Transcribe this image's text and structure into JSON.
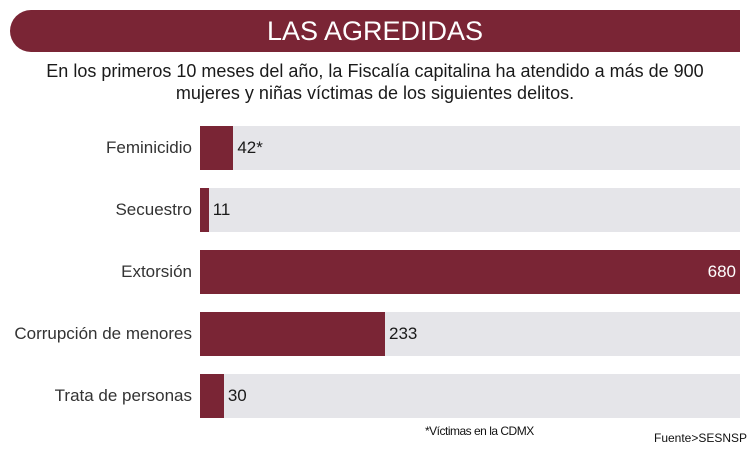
{
  "chart_data": {
    "type": "bar",
    "orientation": "horizontal",
    "title": "LAS AGREDIDAS",
    "subtitle": "En los primeros 10 meses del año, la Fiscalía capitalina ha atendido a más de 900 mujeres y niñas víctimas de los siguientes delitos.",
    "categories": [
      "Feminicidio",
      "Secuestro",
      "Extorsión",
      "Corrupción de menores",
      "Trata de personas"
    ],
    "values": [
      42,
      11,
      680,
      233,
      30
    ],
    "data_labels": [
      "42*",
      "11",
      "680",
      "233",
      "30"
    ],
    "xlim": [
      0,
      680
    ],
    "note": "*Víctimas en la CDMX",
    "source": "Fuente>SESNSP",
    "colors": {
      "bar": "#7a2535",
      "track": "#e5e5e9"
    }
  }
}
